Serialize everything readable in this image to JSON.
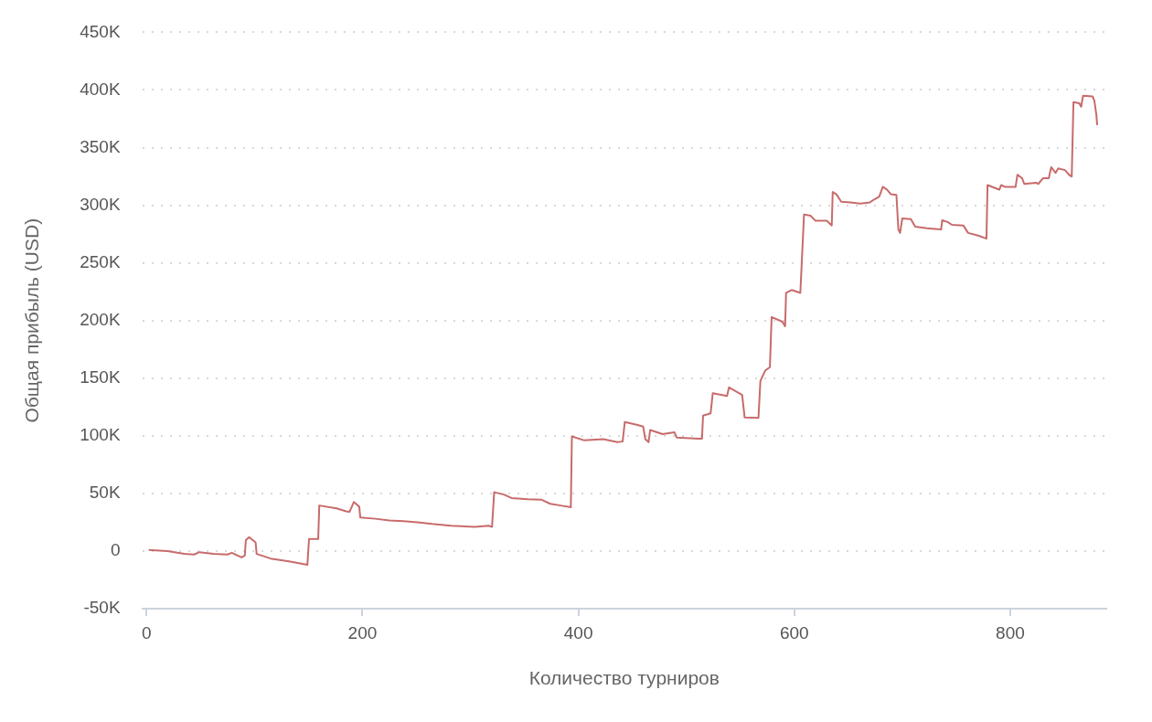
{
  "chart_data": {
    "type": "line",
    "xlabel": "Количество турниров",
    "ylabel": "Общая прибыль (USD)",
    "xlim": [
      -4,
      889
    ],
    "xticks": [
      0,
      200,
      400,
      600,
      800
    ],
    "ylim": [
      -50000,
      450000
    ],
    "yticks": [
      {
        "value": -50000,
        "label": "-50K"
      },
      {
        "value": 0,
        "label": "0"
      },
      {
        "value": 50000,
        "label": "50K"
      },
      {
        "value": 100000,
        "label": "100K"
      },
      {
        "value": 150000,
        "label": "150K"
      },
      {
        "value": 200000,
        "label": "200K"
      },
      {
        "value": 250000,
        "label": "250K"
      },
      {
        "value": 300000,
        "label": "300K"
      },
      {
        "value": 350000,
        "label": "350K"
      },
      {
        "value": 400000,
        "label": "400K"
      },
      {
        "value": 450000,
        "label": "450K"
      }
    ],
    "grid": "y",
    "legend": false,
    "marker": "none",
    "line_style": "solid",
    "series": [
      {
        "color": "#c86b6b",
        "x": [
          2,
          19.5,
          35,
          44,
          49,
          62,
          75,
          79,
          88,
          91,
          92,
          95,
          101,
          102,
          115,
          132,
          149,
          150.5,
          159,
          160,
          176,
          185,
          188,
          192,
          197,
          198,
          212,
          225,
          238,
          251,
          264.5,
          282,
          304,
          317,
          320,
          322,
          331,
          338,
          353,
          366,
          374,
          383.5,
          393,
          394,
          405.5,
          423,
          436,
          441,
          443,
          454,
          460,
          462,
          465,
          466.5,
          478,
          489,
          491,
          511,
          514.5,
          515.5,
          522.5,
          524.5,
          537.7,
          539.5,
          551.7,
          554,
          566.8,
          568.6,
          573,
          577.4,
          579,
          588.9,
          591.5,
          592.4,
          597.6,
          605.6,
          609,
          615,
          619.7,
          630,
          634.7,
          635.6,
          639,
          643.5,
          652,
          661,
          670,
          674,
          678.7,
          682,
          686,
          689.5,
          694.6,
          696.4,
          698,
          700,
          708,
          712,
          723,
          736,
          737,
          742,
          746,
          756.6,
          761,
          771,
          778,
          779,
          789.9,
          791.6,
          795,
          805,
          806.7,
          811,
          813,
          824,
          826,
          830.5,
          835.7,
          838,
          842,
          844.5,
          850.7,
          855,
          857,
          858.6,
          864,
          865.7,
          867.5,
          876.3,
          878,
          879.8,
          880.6
        ],
        "values": [
          1000,
          0,
          -2500,
          -3000,
          -1000,
          -2500,
          -3000,
          -1500,
          -5500,
          -4000,
          9500,
          12000,
          7500,
          -2500,
          -6500,
          -9000,
          -12000,
          10500,
          10500,
          39500,
          37000,
          34500,
          34000,
          42500,
          38500,
          29000,
          28000,
          26500,
          26000,
          25000,
          23500,
          22000,
          21000,
          22000,
          21000,
          51000,
          49000,
          46000,
          45000,
          44500,
          41000,
          39500,
          38000,
          99500,
          96000,
          97000,
          94500,
          95000,
          112000,
          109500,
          108000,
          97000,
          94500,
          105000,
          101500,
          103000,
          98500,
          97500,
          97500,
          117500,
          119500,
          137000,
          134500,
          142000,
          135500,
          116000,
          115500,
          147500,
          156500,
          159500,
          203000,
          199000,
          195000,
          224000,
          226500,
          224000,
          292000,
          291000,
          286500,
          286500,
          282500,
          311500,
          309500,
          303000,
          302500,
          301500,
          302500,
          305000,
          307500,
          316000,
          313500,
          309500,
          309000,
          279000,
          276000,
          288500,
          288000,
          281500,
          280000,
          279000,
          287000,
          285500,
          283000,
          282500,
          276000,
          273500,
          271000,
          317500,
          313500,
          317500,
          316000,
          316000,
          326500,
          323500,
          318500,
          319500,
          318500,
          323500,
          323500,
          333000,
          328000,
          332000,
          330500,
          326000,
          325000,
          389500,
          388500,
          385500,
          395000,
          394500,
          390500,
          378500,
          369500
        ]
      }
    ]
  }
}
